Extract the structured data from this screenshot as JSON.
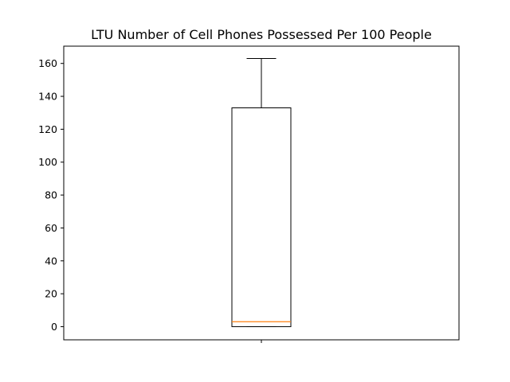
{
  "chart_data": {
    "type": "box",
    "title": "LTU Number of Cell Phones Possessed Per 100 People",
    "xlabel": "",
    "ylabel": "",
    "ylim": [
      -8,
      170.5
    ],
    "yticks": [
      0,
      20,
      40,
      60,
      80,
      100,
      120,
      140,
      160
    ],
    "categories": [
      ""
    ],
    "boxes": [
      {
        "whisker_low": 0,
        "q1": 0,
        "median": 3,
        "q3": 133,
        "whisker_high": 163
      }
    ],
    "grid": false,
    "colors": {
      "box": "#000000",
      "median": "#ff7f0e",
      "axes": "#000000",
      "background": "#ffffff"
    }
  }
}
